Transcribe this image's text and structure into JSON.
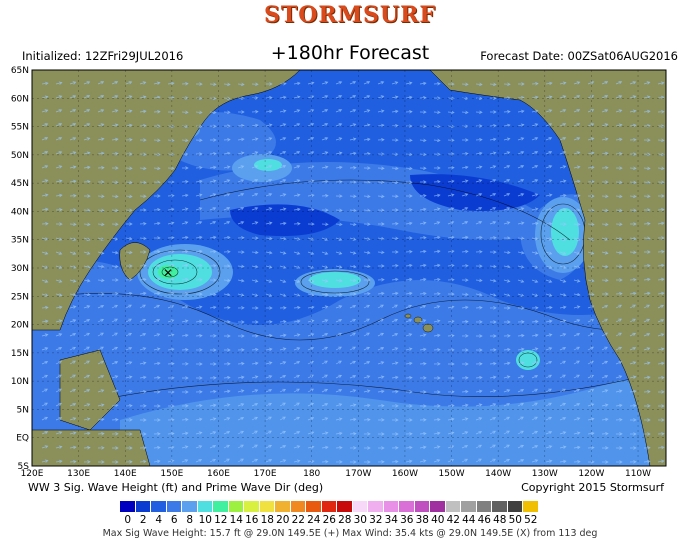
{
  "header": {
    "brand": "STORMSURF",
    "initialized": "Initialized: 12ZFri29JUL2016",
    "forecast_hour": "+180hr Forecast",
    "forecast_date": "Forecast Date: 00ZSat06AUG2016"
  },
  "map": {
    "lat_labels": [
      "65N",
      "60N",
      "55N",
      "50N",
      "45N",
      "40N",
      "35N",
      "30N",
      "25N",
      "20N",
      "15N",
      "10N",
      "5N",
      "EQ",
      "5S"
    ],
    "lon_labels": [
      "120E",
      "130E",
      "140E",
      "150E",
      "160E",
      "170E",
      "180",
      "170W",
      "160W",
      "150W",
      "140W",
      "130W",
      "120W",
      "110W"
    ],
    "colors": {
      "ocean_base": "#1f5fe0",
      "land": "#8b8f5a",
      "high_wave": "#4fdfe0"
    }
  },
  "footer": {
    "title": "WW 3 Sig. Wave Height (ft) and Prime Wave Dir (deg)",
    "copyright": "Copyright 2015 Stormsurf",
    "stats": "Max Sig Wave Height: 15.7 ft @ 29.0N 149.5E (+)   Max Wind: 35.4 kts @ 29.0N 149.5E (X) from 113 deg"
  },
  "legend": {
    "labels": [
      "0",
      "2",
      "4",
      "6",
      "8",
      "10",
      "12",
      "14",
      "16",
      "18",
      "20",
      "22",
      "24",
      "26",
      "28",
      "30",
      "32",
      "34",
      "36",
      "38",
      "40",
      "42",
      "44",
      "46",
      "48",
      "50",
      "52"
    ],
    "colors": [
      "#0000c0",
      "#0a3cd2",
      "#1f5fe0",
      "#3c7ae8",
      "#5aa0ee",
      "#4fdfe0",
      "#40f0a0",
      "#9ef040",
      "#d8f040",
      "#f0e040",
      "#f0b030",
      "#f08a20",
      "#e85a10",
      "#e02810",
      "#c80a0a",
      "#f8d8f8",
      "#f0b0f0",
      "#e890e8",
      "#d870d8",
      "#c050c0",
      "#a030a0",
      "#c0c0c0",
      "#a0a0a0",
      "#808080",
      "#606060",
      "#404040",
      "#f0c000"
    ]
  }
}
